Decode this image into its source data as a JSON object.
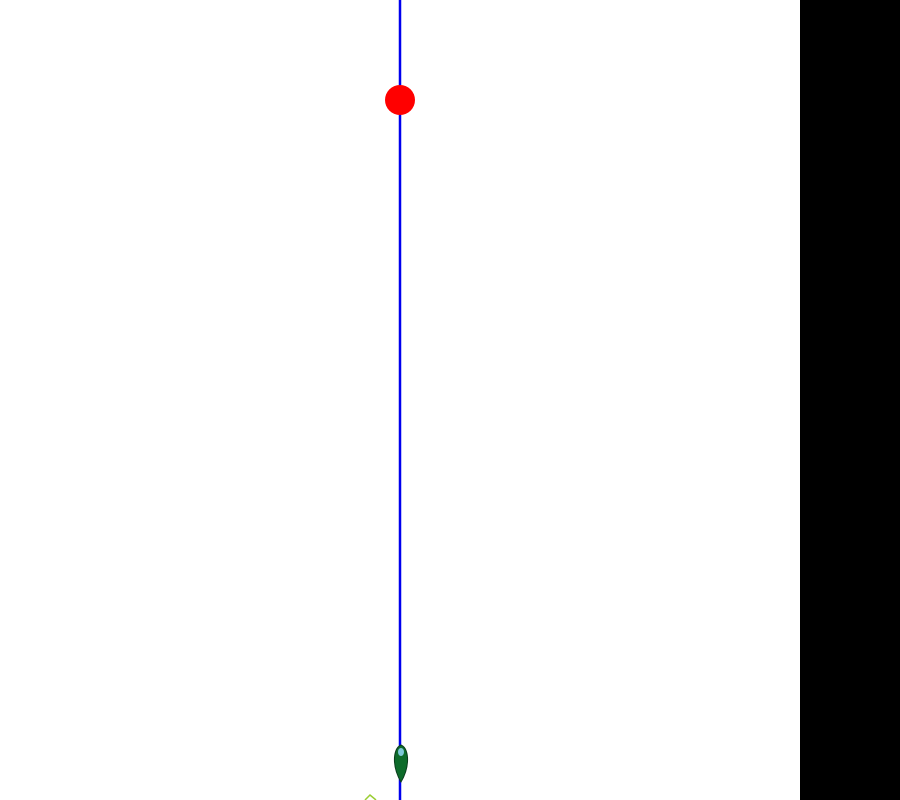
{
  "scene": {
    "title": "",
    "colors": {
      "background": "#ffffff",
      "side_panel": "#000000",
      "track_line": "#0000ee",
      "target": "#ff0000",
      "player_body": "#0d6b2a",
      "player_outline": "#0a3d1c",
      "player_window": "#7ec8d8",
      "debris": "#9acd32"
    },
    "objects": {
      "track": {
        "kind": "vertical-guide-line"
      },
      "target": {
        "kind": "red-circle",
        "icon": "target-dot-icon"
      },
      "player": {
        "kind": "green-rocket",
        "icon": "player-ship-icon"
      },
      "debris": {
        "kind": "small-chevron",
        "icon": "debris-icon"
      }
    }
  }
}
